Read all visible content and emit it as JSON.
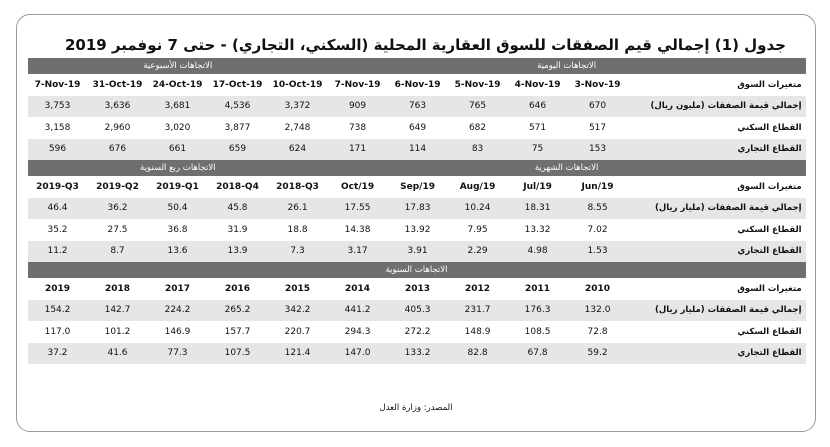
{
  "title": "جدول (1) إجمالي قيم الصفقات للسوق العقارية المحلية (السكني، التجاري) - حتى 7 نوفمبر 2019",
  "sections": {
    "daily": "الاتجاهات اليومية",
    "weekly": "الاتجاهات الأسبوعية",
    "monthly": "الاتجاهات الشهرية",
    "quarterly": "الاتجاهات ربع السنوية",
    "annual": "الاتجاهات السنوية"
  },
  "block1": {
    "header_label": "متغيرات السوق",
    "columns": [
      "3-Nov-19",
      "4-Nov-19",
      "5-Nov-19",
      "6-Nov-19",
      "7-Nov-19",
      "10-Oct-19",
      "17-Oct-19",
      "24-Oct-19",
      "31-Oct-19",
      "7-Nov-19"
    ],
    "rows": [
      {
        "label": "إجمالي قيمة الصفقات (مليون ريال)",
        "values": [
          "670",
          "646",
          "765",
          "763",
          "909",
          "3,372",
          "4,536",
          "3,681",
          "3,636",
          "3,753"
        ]
      },
      {
        "label": "القطاع السكني",
        "values": [
          "517",
          "571",
          "682",
          "649",
          "738",
          "2,748",
          "3,877",
          "3,020",
          "2,960",
          "3,158"
        ]
      },
      {
        "label": "القطاع التجاري",
        "values": [
          "153",
          "75",
          "83",
          "114",
          "171",
          "624",
          "659",
          "661",
          "676",
          "596"
        ]
      }
    ]
  },
  "block2": {
    "header_label": "متغيرات السوق",
    "columns": [
      "Jun/19",
      "Jul/19",
      "Aug/19",
      "Sep/19",
      "Oct/19",
      "2018-Q3",
      "2018-Q4",
      "2019-Q1",
      "2019-Q2",
      "2019-Q3"
    ],
    "rows": [
      {
        "label": "إجمالي قيمة الصفقات (مليار ريال)",
        "values": [
          "8.55",
          "18.31",
          "10.24",
          "17.83",
          "17.55",
          "26.1",
          "45.8",
          "50.4",
          "36.2",
          "46.4"
        ]
      },
      {
        "label": "القطاع السكني",
        "values": [
          "7.02",
          "13.32",
          "7.95",
          "13.92",
          "14.38",
          "18.8",
          "31.9",
          "36.8",
          "27.5",
          "35.2"
        ]
      },
      {
        "label": "القطاع التجاري",
        "values": [
          "1.53",
          "4.98",
          "2.29",
          "3.91",
          "3.17",
          "7.3",
          "13.9",
          "13.6",
          "8.7",
          "11.2"
        ]
      }
    ]
  },
  "block3": {
    "header_label": "متغيرات السوق",
    "columns": [
      "2010",
      "2011",
      "2012",
      "2013",
      "2014",
      "2015",
      "2016",
      "2017",
      "2018",
      "2019"
    ],
    "rows": [
      {
        "label": "إجمالي قيمة الصفقات (مليار ريال)",
        "values": [
          "132.0",
          "176.3",
          "231.7",
          "405.3",
          "441.2",
          "342.2",
          "265.2",
          "224.2",
          "142.7",
          "154.2"
        ]
      },
      {
        "label": "القطاع السكني",
        "values": [
          "72.8",
          "108.5",
          "148.9",
          "272.2",
          "294.3",
          "220.7",
          "157.7",
          "146.9",
          "101.2",
          "117.0"
        ]
      },
      {
        "label": "القطاع التجاري",
        "values": [
          "59.2",
          "67.8",
          "82.8",
          "133.2",
          "147.0",
          "121.4",
          "107.5",
          "77.3",
          "41.6",
          "37.2"
        ]
      }
    ]
  },
  "source": "المصدر: وزارة العدل"
}
